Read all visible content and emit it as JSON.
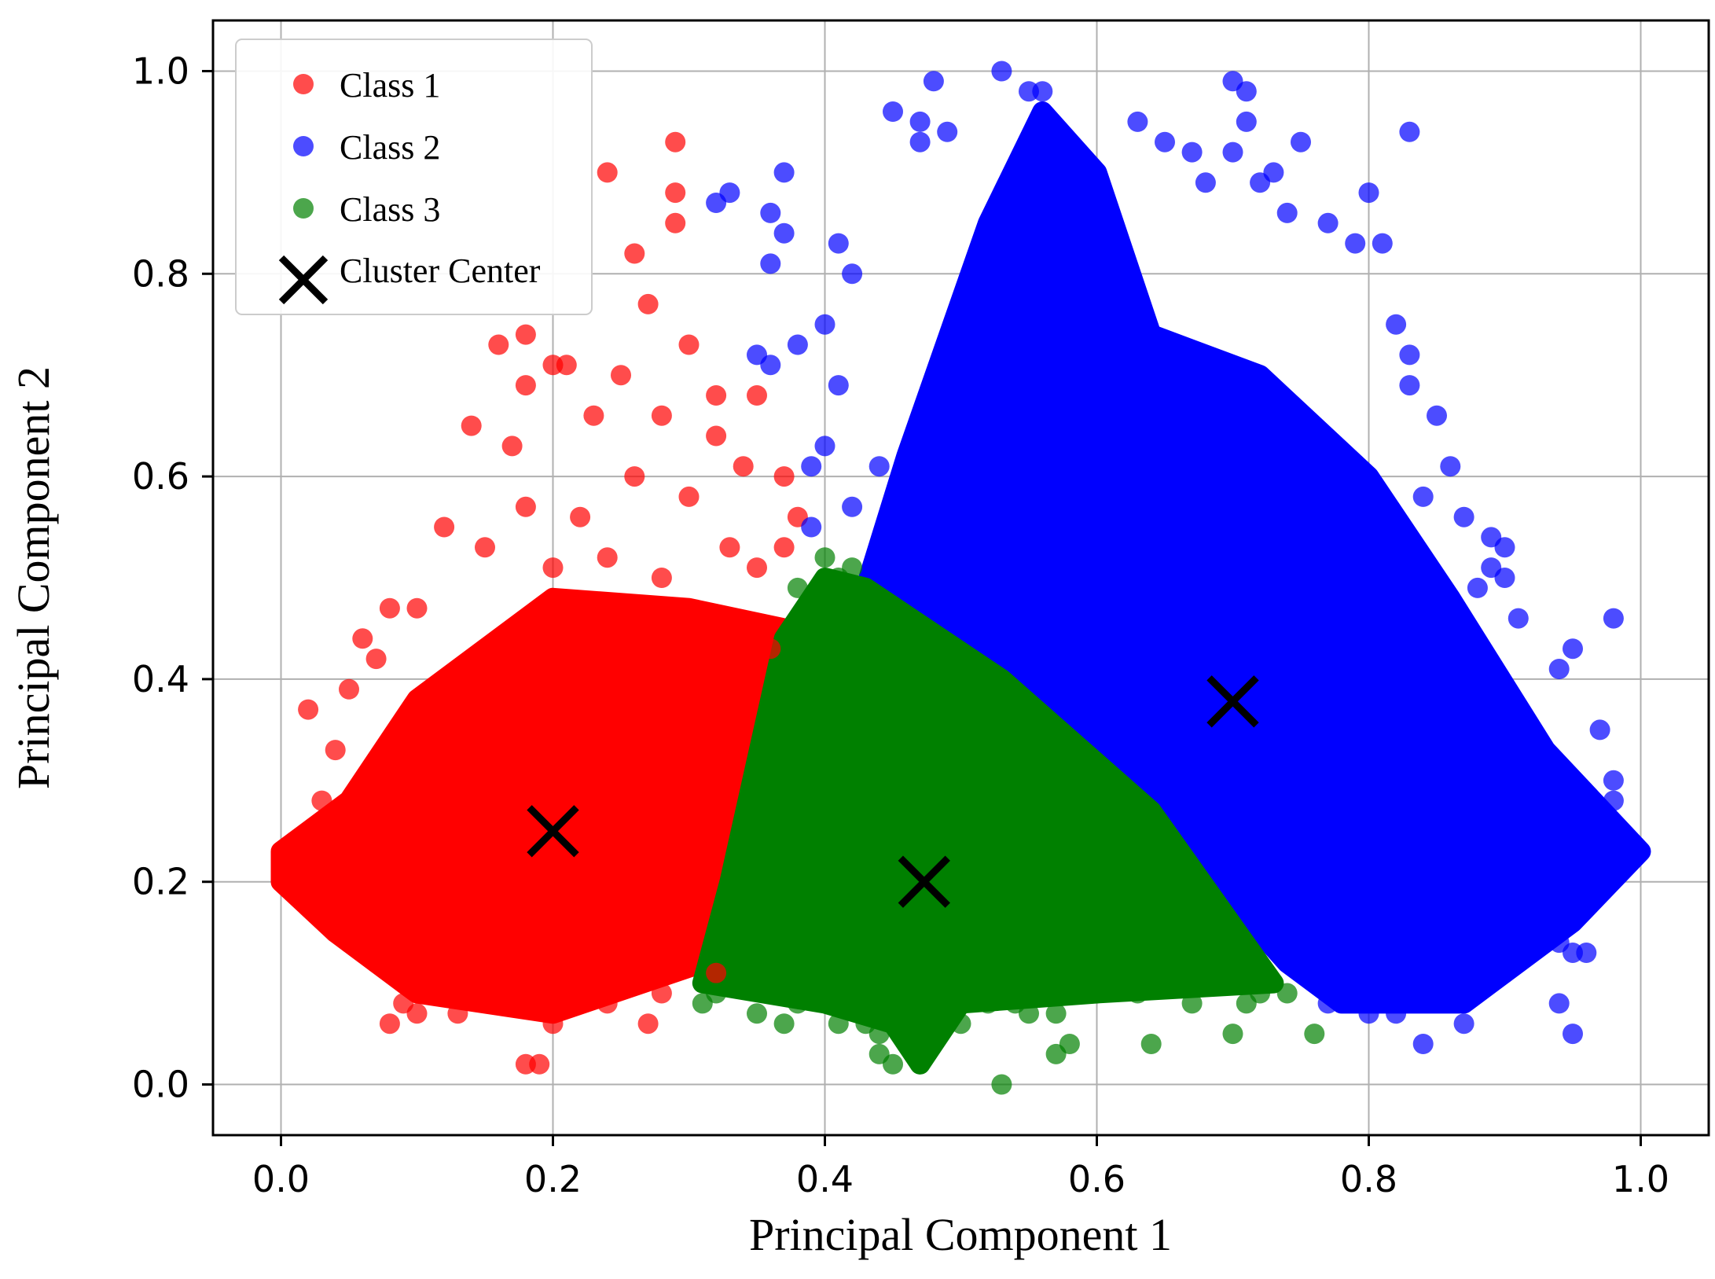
{
  "chart_data": {
    "type": "scatter",
    "title": "",
    "xlabel": "Principal Component 1",
    "ylabel": "Principal Component 2",
    "xlim": [
      -0.05,
      1.05
    ],
    "ylim": [
      -0.05,
      1.05
    ],
    "xticks": [
      0.0,
      0.2,
      0.4,
      0.6,
      0.8,
      1.0
    ],
    "yticks": [
      0.0,
      0.2,
      0.4,
      0.6,
      0.8,
      1.0
    ],
    "xtick_labels": [
      "0.0",
      "0.2",
      "0.4",
      "0.6",
      "0.8",
      "1.0"
    ],
    "ytick_labels": [
      "0.0",
      "0.2",
      "0.4",
      "0.6",
      "0.8",
      "1.0"
    ],
    "grid": true,
    "legend_position": "top-left",
    "series": [
      {
        "name": "Class 1",
        "color": "#ff0000",
        "dense_region": [
          [
            0.0,
            0.23
          ],
          [
            0.05,
            0.28
          ],
          [
            0.1,
            0.38
          ],
          [
            0.2,
            0.48
          ],
          [
            0.3,
            0.47
          ],
          [
            0.37,
            0.45
          ],
          [
            0.345,
            0.3
          ],
          [
            0.31,
            0.12
          ],
          [
            0.2,
            0.07
          ],
          [
            0.1,
            0.09
          ],
          [
            0.04,
            0.15
          ],
          [
            0.0,
            0.2
          ]
        ],
        "points": [
          [
            0.29,
            0.93
          ],
          [
            0.24,
            0.9
          ],
          [
            0.29,
            0.88
          ],
          [
            0.29,
            0.85
          ],
          [
            0.26,
            0.82
          ],
          [
            0.27,
            0.77
          ],
          [
            0.18,
            0.74
          ],
          [
            0.16,
            0.73
          ],
          [
            0.2,
            0.71
          ],
          [
            0.21,
            0.71
          ],
          [
            0.25,
            0.7
          ],
          [
            0.3,
            0.73
          ],
          [
            0.18,
            0.69
          ],
          [
            0.32,
            0.68
          ],
          [
            0.35,
            0.68
          ],
          [
            0.14,
            0.65
          ],
          [
            0.17,
            0.63
          ],
          [
            0.23,
            0.66
          ],
          [
            0.28,
            0.66
          ],
          [
            0.32,
            0.64
          ],
          [
            0.34,
            0.61
          ],
          [
            0.37,
            0.6
          ],
          [
            0.12,
            0.55
          ],
          [
            0.15,
            0.53
          ],
          [
            0.18,
            0.57
          ],
          [
            0.22,
            0.56
          ],
          [
            0.26,
            0.6
          ],
          [
            0.3,
            0.58
          ],
          [
            0.38,
            0.56
          ],
          [
            0.08,
            0.47
          ],
          [
            0.1,
            0.47
          ],
          [
            0.06,
            0.44
          ],
          [
            0.07,
            0.42
          ],
          [
            0.02,
            0.37
          ],
          [
            0.05,
            0.39
          ],
          [
            0.04,
            0.33
          ],
          [
            0.03,
            0.28
          ],
          [
            0.04,
            0.15
          ],
          [
            0.05,
            0.14
          ],
          [
            0.07,
            0.12
          ],
          [
            0.09,
            0.08
          ],
          [
            0.1,
            0.07
          ],
          [
            0.08,
            0.06
          ],
          [
            0.13,
            0.07
          ],
          [
            0.19,
            0.02
          ],
          [
            0.18,
            0.02
          ],
          [
            0.2,
            0.06
          ],
          [
            0.24,
            0.08
          ],
          [
            0.27,
            0.06
          ],
          [
            0.28,
            0.09
          ],
          [
            0.32,
            0.11
          ],
          [
            0.36,
            0.43
          ],
          [
            0.34,
            0.44
          ],
          [
            0.11,
            0.09
          ],
          [
            0.15,
            0.1
          ],
          [
            0.02,
            0.22
          ],
          [
            0.0,
            0.21
          ],
          [
            0.01,
            0.24
          ],
          [
            0.2,
            0.51
          ],
          [
            0.24,
            0.52
          ],
          [
            0.28,
            0.5
          ],
          [
            0.33,
            0.53
          ],
          [
            0.35,
            0.51
          ],
          [
            0.37,
            0.53
          ]
        ]
      },
      {
        "name": "Class 2",
        "color": "#0000ff",
        "dense_region": [
          [
            0.43,
            0.49
          ],
          [
            0.46,
            0.62
          ],
          [
            0.52,
            0.85
          ],
          [
            0.56,
            0.96
          ],
          [
            0.6,
            0.9
          ],
          [
            0.64,
            0.74
          ],
          [
            0.72,
            0.7
          ],
          [
            0.8,
            0.6
          ],
          [
            0.86,
            0.48
          ],
          [
            0.93,
            0.33
          ],
          [
            1.0,
            0.23
          ],
          [
            0.95,
            0.16
          ],
          [
            0.87,
            0.08
          ],
          [
            0.78,
            0.08
          ],
          [
            0.74,
            0.12
          ],
          [
            0.64,
            0.27
          ],
          [
            0.53,
            0.4
          ],
          [
            0.45,
            0.48
          ]
        ],
        "points": [
          [
            0.53,
            1.0
          ],
          [
            0.55,
            0.98
          ],
          [
            0.56,
            0.98
          ],
          [
            0.7,
            0.99
          ],
          [
            0.71,
            0.98
          ],
          [
            0.83,
            0.94
          ],
          [
            0.48,
            0.99
          ],
          [
            0.45,
            0.96
          ],
          [
            0.47,
            0.95
          ],
          [
            0.49,
            0.94
          ],
          [
            0.47,
            0.93
          ],
          [
            0.63,
            0.95
          ],
          [
            0.65,
            0.93
          ],
          [
            0.67,
            0.92
          ],
          [
            0.68,
            0.89
          ],
          [
            0.71,
            0.95
          ],
          [
            0.7,
            0.92
          ],
          [
            0.72,
            0.89
          ],
          [
            0.74,
            0.86
          ],
          [
            0.75,
            0.93
          ],
          [
            0.77,
            0.85
          ],
          [
            0.79,
            0.83
          ],
          [
            0.8,
            0.88
          ],
          [
            0.81,
            0.83
          ],
          [
            0.82,
            0.75
          ],
          [
            0.83,
            0.72
          ],
          [
            0.85,
            0.66
          ],
          [
            0.83,
            0.69
          ],
          [
            0.86,
            0.61
          ],
          [
            0.84,
            0.58
          ],
          [
            0.87,
            0.56
          ],
          [
            0.89,
            0.54
          ],
          [
            0.9,
            0.53
          ],
          [
            0.89,
            0.51
          ],
          [
            0.9,
            0.5
          ],
          [
            0.88,
            0.49
          ],
          [
            0.91,
            0.46
          ],
          [
            0.95,
            0.43
          ],
          [
            0.94,
            0.41
          ],
          [
            0.98,
            0.46
          ],
          [
            0.97,
            0.35
          ],
          [
            0.98,
            0.3
          ],
          [
            0.98,
            0.28
          ],
          [
            0.99,
            0.24
          ],
          [
            0.97,
            0.2
          ],
          [
            0.95,
            0.18
          ],
          [
            0.93,
            0.17
          ],
          [
            0.94,
            0.14
          ],
          [
            0.95,
            0.13
          ],
          [
            0.96,
            0.13
          ],
          [
            0.94,
            0.08
          ],
          [
            0.95,
            0.05
          ],
          [
            0.9,
            0.11
          ],
          [
            0.87,
            0.06
          ],
          [
            0.84,
            0.04
          ],
          [
            0.82,
            0.07
          ],
          [
            0.8,
            0.07
          ],
          [
            0.77,
            0.08
          ],
          [
            0.73,
            0.9
          ],
          [
            0.4,
            0.75
          ],
          [
            0.41,
            0.69
          ],
          [
            0.42,
            0.8
          ],
          [
            0.41,
            0.83
          ],
          [
            0.38,
            0.73
          ],
          [
            0.36,
            0.81
          ],
          [
            0.37,
            0.84
          ],
          [
            0.37,
            0.9
          ],
          [
            0.36,
            0.86
          ],
          [
            0.32,
            0.87
          ],
          [
            0.33,
            0.88
          ],
          [
            0.35,
            0.72
          ],
          [
            0.36,
            0.71
          ],
          [
            0.4,
            0.63
          ],
          [
            0.39,
            0.61
          ],
          [
            0.42,
            0.57
          ],
          [
            0.39,
            0.55
          ],
          [
            0.44,
            0.61
          ]
        ]
      },
      {
        "name": "Class 3",
        "color": "#008000",
        "dense_region": [
          [
            0.37,
            0.44
          ],
          [
            0.4,
            0.5
          ],
          [
            0.43,
            0.49
          ],
          [
            0.53,
            0.4
          ],
          [
            0.64,
            0.27
          ],
          [
            0.73,
            0.1
          ],
          [
            0.6,
            0.09
          ],
          [
            0.5,
            0.08
          ],
          [
            0.47,
            0.02
          ],
          [
            0.45,
            0.06
          ],
          [
            0.4,
            0.08
          ],
          [
            0.31,
            0.1
          ],
          [
            0.33,
            0.2
          ],
          [
            0.35,
            0.32
          ]
        ],
        "points": [
          [
            0.4,
            0.52
          ],
          [
            0.41,
            0.5
          ],
          [
            0.42,
            0.51
          ],
          [
            0.38,
            0.49
          ],
          [
            0.31,
            0.08
          ],
          [
            0.32,
            0.09
          ],
          [
            0.35,
            0.07
          ],
          [
            0.37,
            0.06
          ],
          [
            0.38,
            0.08
          ],
          [
            0.41,
            0.06
          ],
          [
            0.43,
            0.06
          ],
          [
            0.44,
            0.05
          ],
          [
            0.44,
            0.03
          ],
          [
            0.45,
            0.02
          ],
          [
            0.46,
            0.04
          ],
          [
            0.47,
            0.02
          ],
          [
            0.48,
            0.06
          ],
          [
            0.49,
            0.08
          ],
          [
            0.5,
            0.06
          ],
          [
            0.52,
            0.08
          ],
          [
            0.53,
            0.0
          ],
          [
            0.54,
            0.08
          ],
          [
            0.55,
            0.07
          ],
          [
            0.56,
            0.09
          ],
          [
            0.57,
            0.07
          ],
          [
            0.58,
            0.04
          ],
          [
            0.57,
            0.03
          ],
          [
            0.6,
            0.09
          ],
          [
            0.63,
            0.09
          ],
          [
            0.64,
            0.04
          ],
          [
            0.67,
            0.08
          ],
          [
            0.7,
            0.05
          ],
          [
            0.71,
            0.08
          ],
          [
            0.72,
            0.09
          ],
          [
            0.76,
            0.05
          ],
          [
            0.74,
            0.09
          ]
        ]
      }
    ],
    "cluster_centers": {
      "name": "Cluster Center",
      "color": "#000000",
      "points": [
        [
          0.2,
          0.25
        ],
        [
          0.473,
          0.2
        ],
        [
          0.7,
          0.378
        ]
      ]
    }
  },
  "legend": {
    "items": [
      {
        "label": "Class 1",
        "color": "#ff0000",
        "marker": "circle"
      },
      {
        "label": "Class 2",
        "color": "#0000ff",
        "marker": "circle"
      },
      {
        "label": "Class 3",
        "color": "#008000",
        "marker": "circle"
      },
      {
        "label": "Cluster Center",
        "color": "#000000",
        "marker": "x"
      }
    ]
  }
}
